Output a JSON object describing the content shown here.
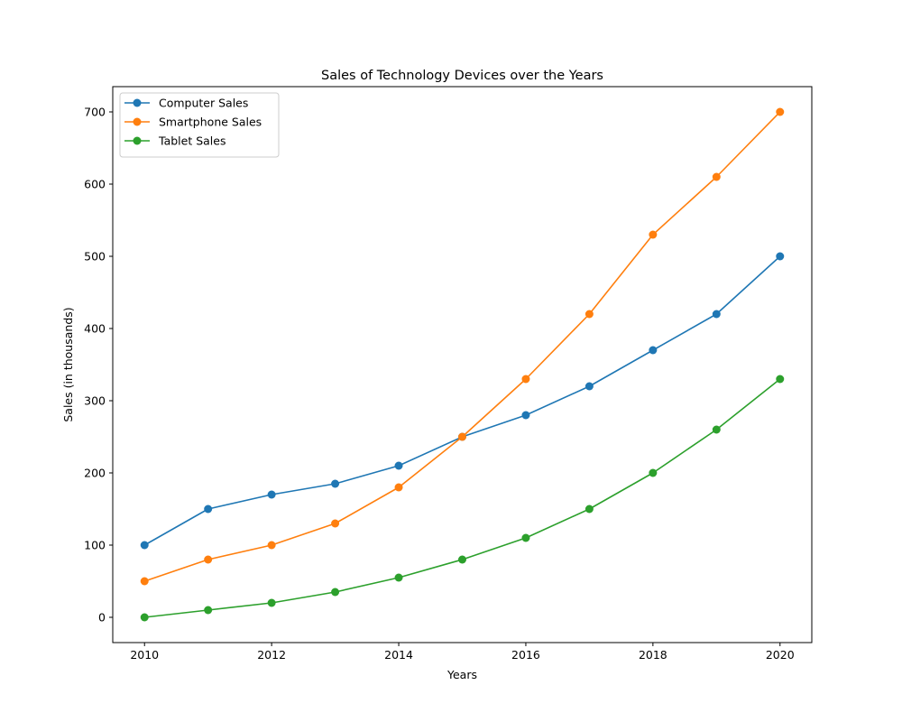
{
  "chart_data": {
    "type": "line",
    "title": "Sales of Technology Devices over the Years",
    "xlabel": "Years",
    "ylabel": "Sales (in thousands)",
    "x": [
      2010,
      2011,
      2012,
      2013,
      2014,
      2015,
      2016,
      2017,
      2018,
      2019,
      2020
    ],
    "xticks": [
      2010,
      2012,
      2014,
      2016,
      2018,
      2020
    ],
    "yticks": [
      0,
      100,
      200,
      300,
      400,
      500,
      600,
      700
    ],
    "xlim": [
      2009.5,
      2020.5
    ],
    "ylim": [
      -35,
      735
    ],
    "grid": false,
    "legend_position": "top-left",
    "series": [
      {
        "name": "Computer Sales",
        "color": "#1f77b4",
        "marker": "circle",
        "values": [
          100,
          150,
          170,
          185,
          210,
          250,
          280,
          320,
          370,
          420,
          500
        ]
      },
      {
        "name": "Smartphone Sales",
        "color": "#ff7f0e",
        "marker": "circle",
        "values": [
          50,
          80,
          100,
          130,
          180,
          250,
          330,
          420,
          530,
          610,
          700
        ]
      },
      {
        "name": "Tablet Sales",
        "color": "#2ca02c",
        "marker": "circle",
        "values": [
          0,
          10,
          20,
          35,
          55,
          80,
          110,
          150,
          200,
          260,
          330
        ]
      }
    ]
  }
}
